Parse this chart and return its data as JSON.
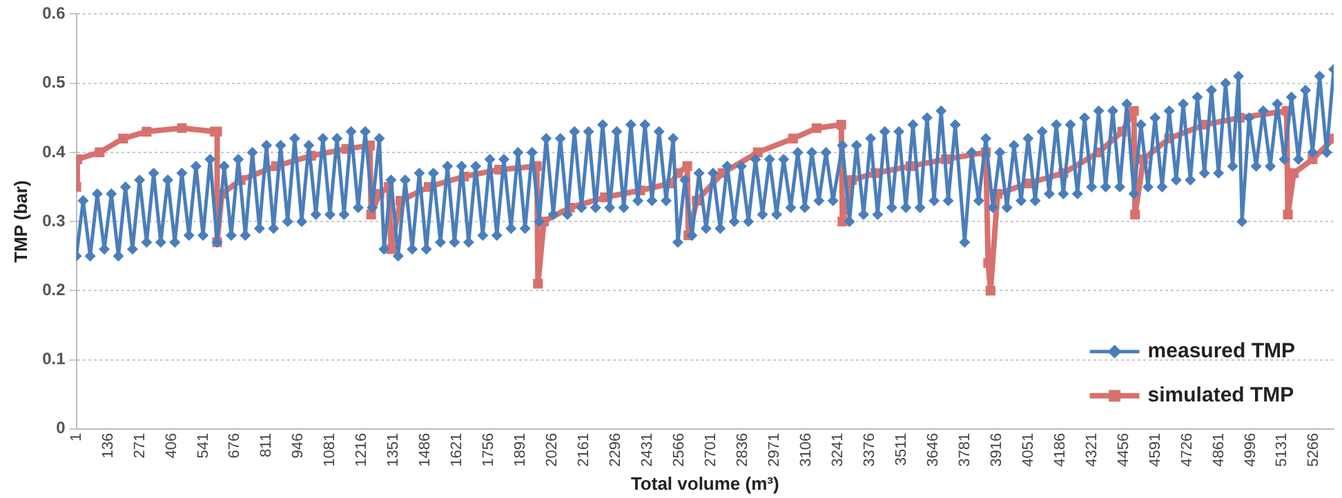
{
  "chart_data": {
    "type": "line",
    "xlabel": "Total volume (m³)",
    "ylabel": "TMP (bar)",
    "xlim": [
      1,
      5350
    ],
    "xticks": [
      1,
      136,
      271,
      406,
      541,
      676,
      811,
      946,
      1081,
      1216,
      1351,
      1486,
      1621,
      1756,
      1891,
      2026,
      2161,
      2296,
      2431,
      2566,
      2701,
      2836,
      2971,
      3106,
      3241,
      3376,
      3511,
      3646,
      3781,
      3916,
      4051,
      4186,
      4321,
      4456,
      4591,
      4726,
      4861,
      4996,
      5131,
      5266
    ],
    "ylim": [
      0,
      0.6
    ],
    "yticks": [
      0,
      0.1,
      0.2,
      0.3,
      0.4,
      0.5,
      0.6
    ],
    "grid": "y",
    "legend": "bottom right",
    "series": [
      {
        "name": "measured TMP",
        "color": "#4a7ebb",
        "marker": "diamond",
        "x": [
          1,
          30,
          60,
          90,
          120,
          150,
          180,
          210,
          240,
          270,
          300,
          330,
          360,
          390,
          420,
          450,
          480,
          510,
          540,
          570,
          600,
          630,
          660,
          690,
          720,
          750,
          780,
          810,
          840,
          870,
          900,
          930,
          960,
          990,
          1020,
          1050,
          1080,
          1110,
          1140,
          1170,
          1200,
          1230,
          1260,
          1290,
          1310,
          1340,
          1370,
          1400,
          1430,
          1460,
          1490,
          1520,
          1550,
          1580,
          1610,
          1640,
          1670,
          1700,
          1730,
          1760,
          1790,
          1820,
          1850,
          1880,
          1910,
          1940,
          1970,
          2000,
          2030,
          2060,
          2090,
          2120,
          2150,
          2180,
          2210,
          2240,
          2270,
          2300,
          2330,
          2360,
          2390,
          2420,
          2450,
          2480,
          2510,
          2540,
          2560,
          2590,
          2620,
          2650,
          2680,
          2710,
          2740,
          2770,
          2800,
          2830,
          2860,
          2890,
          2920,
          2950,
          2980,
          3010,
          3040,
          3070,
          3100,
          3130,
          3160,
          3190,
          3220,
          3260,
          3290,
          3320,
          3350,
          3380,
          3410,
          3440,
          3470,
          3500,
          3530,
          3560,
          3590,
          3620,
          3650,
          3680,
          3710,
          3740,
          3780,
          3810,
          3840,
          3870,
          3900,
          3930,
          3960,
          3990,
          4020,
          4050,
          4080,
          4110,
          4140,
          4170,
          4200,
          4230,
          4260,
          4290,
          4320,
          4350,
          4380,
          4410,
          4440,
          4470,
          4500,
          4530,
          4560,
          4590,
          4620,
          4650,
          4680,
          4710,
          4740,
          4770,
          4800,
          4830,
          4860,
          4890,
          4920,
          4945,
          4960,
          4990,
          5020,
          5050,
          5080,
          5110,
          5140,
          5170,
          5200,
          5230,
          5260,
          5290,
          5320,
          5350
        ],
        "values": [
          0.25,
          0.33,
          0.25,
          0.34,
          0.26,
          0.34,
          0.25,
          0.35,
          0.26,
          0.36,
          0.27,
          0.37,
          0.27,
          0.36,
          0.27,
          0.37,
          0.28,
          0.38,
          0.28,
          0.39,
          0.27,
          0.38,
          0.28,
          0.39,
          0.28,
          0.4,
          0.29,
          0.41,
          0.29,
          0.41,
          0.3,
          0.42,
          0.3,
          0.41,
          0.31,
          0.42,
          0.31,
          0.42,
          0.31,
          0.43,
          0.32,
          0.43,
          0.32,
          0.42,
          0.26,
          0.36,
          0.25,
          0.36,
          0.26,
          0.37,
          0.26,
          0.37,
          0.27,
          0.38,
          0.27,
          0.38,
          0.27,
          0.38,
          0.28,
          0.39,
          0.28,
          0.39,
          0.29,
          0.4,
          0.29,
          0.4,
          0.3,
          0.42,
          0.31,
          0.42,
          0.31,
          0.43,
          0.32,
          0.43,
          0.32,
          0.44,
          0.32,
          0.43,
          0.32,
          0.44,
          0.33,
          0.44,
          0.33,
          0.43,
          0.33,
          0.42,
          0.27,
          0.36,
          0.28,
          0.37,
          0.29,
          0.37,
          0.29,
          0.38,
          0.3,
          0.38,
          0.3,
          0.39,
          0.31,
          0.39,
          0.31,
          0.39,
          0.32,
          0.4,
          0.32,
          0.4,
          0.33,
          0.4,
          0.33,
          0.41,
          0.3,
          0.41,
          0.31,
          0.42,
          0.31,
          0.43,
          0.32,
          0.43,
          0.32,
          0.44,
          0.32,
          0.45,
          0.33,
          0.46,
          0.33,
          0.44,
          0.27,
          0.4,
          0.33,
          0.42,
          0.32,
          0.4,
          0.32,
          0.41,
          0.33,
          0.42,
          0.33,
          0.43,
          0.34,
          0.44,
          0.34,
          0.44,
          0.34,
          0.45,
          0.35,
          0.46,
          0.35,
          0.46,
          0.35,
          0.47,
          0.34,
          0.44,
          0.35,
          0.45,
          0.35,
          0.46,
          0.36,
          0.47,
          0.36,
          0.48,
          0.37,
          0.49,
          0.37,
          0.5,
          0.38,
          0.51,
          0.3,
          0.45,
          0.38,
          0.46,
          0.38,
          0.47,
          0.39,
          0.48,
          0.39,
          0.49,
          0.4,
          0.51,
          0.4,
          0.52
        ]
      },
      {
        "name": "simulated TMP",
        "color": "#d7716e",
        "marker": "square",
        "x": [
          1,
          5,
          100,
          200,
          300,
          450,
          590,
          600,
          600,
          620,
          700,
          850,
          1000,
          1150,
          1250,
          1255,
          1290,
          1330,
          1340,
          1380,
          1500,
          1650,
          1800,
          1960,
          1965,
          1990,
          2100,
          2250,
          2400,
          2530,
          2560,
          2600,
          2605,
          2640,
          2750,
          2900,
          3050,
          3150,
          3255,
          3260,
          3300,
          3400,
          3550,
          3700,
          3870,
          3880,
          3890,
          3920,
          4050,
          4200,
          4350,
          4450,
          4500,
          4505,
          4540,
          4650,
          4800,
          4950,
          5150,
          5155,
          5180,
          5260,
          5350
        ],
        "values": [
          0.35,
          0.39,
          0.4,
          0.42,
          0.43,
          0.435,
          0.43,
          0.43,
          0.27,
          0.34,
          0.36,
          0.38,
          0.395,
          0.405,
          0.41,
          0.31,
          0.34,
          0.35,
          0.26,
          0.33,
          0.35,
          0.365,
          0.375,
          0.38,
          0.21,
          0.3,
          0.32,
          0.335,
          0.345,
          0.355,
          0.37,
          0.38,
          0.28,
          0.33,
          0.37,
          0.4,
          0.42,
          0.435,
          0.44,
          0.3,
          0.36,
          0.37,
          0.38,
          0.39,
          0.4,
          0.24,
          0.2,
          0.34,
          0.355,
          0.37,
          0.4,
          0.43,
          0.46,
          0.31,
          0.39,
          0.42,
          0.44,
          0.45,
          0.46,
          0.31,
          0.37,
          0.39,
          0.42
        ]
      }
    ]
  }
}
